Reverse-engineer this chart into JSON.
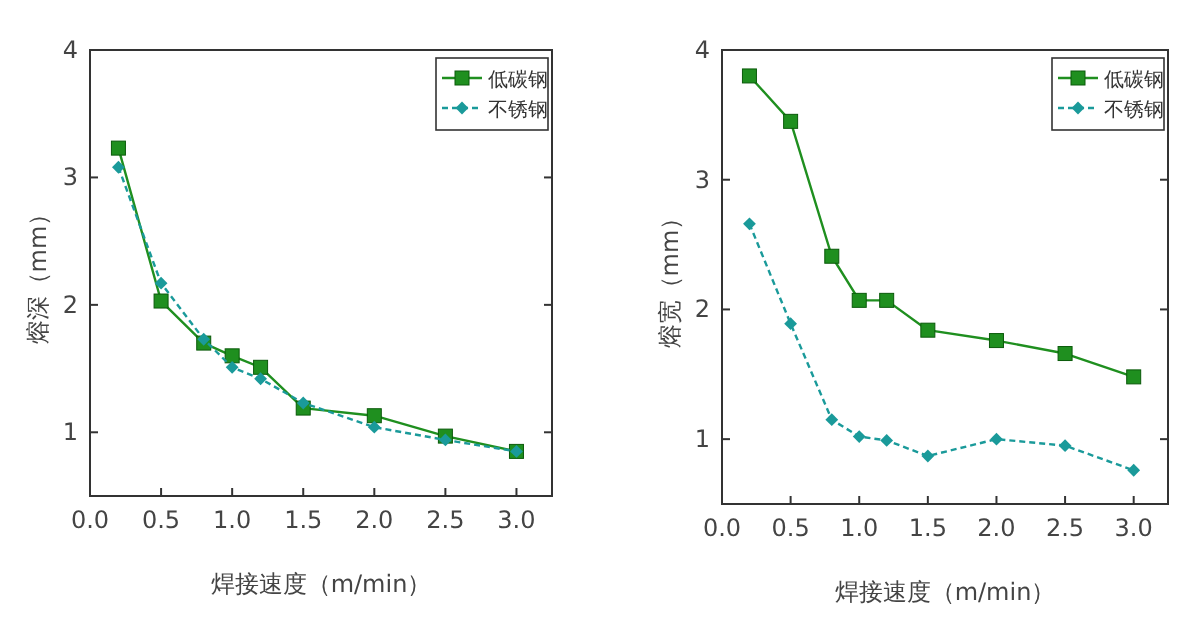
{
  "chart_data": [
    {
      "type": "line",
      "xlabel": "焊接速度（m/min）",
      "ylabel": "熔深（mm）",
      "x": [
        0.2,
        0.5,
        0.8,
        1.0,
        1.2,
        1.5,
        2.0,
        2.5,
        3.0
      ],
      "xlim": [
        0,
        3.25
      ],
      "xticks": [
        {
          "value": 0,
          "label": "0.0"
        },
        {
          "value": 0.5,
          "label": "0.5"
        },
        {
          "value": 1,
          "label": "1.0"
        },
        {
          "value": 1.5,
          "label": "1.5"
        },
        {
          "value": 2,
          "label": "2.0"
        },
        {
          "value": 2.5,
          "label": "2.5"
        },
        {
          "value": 3,
          "label": "3.0"
        }
      ],
      "ylim": [
        0.5,
        4
      ],
      "yticks": [
        1,
        2,
        3,
        4
      ],
      "legend": "top right",
      "grid": false,
      "series": [
        {
          "name": "低碳钢",
          "color": "#1f8f1f",
          "marker": "square",
          "line_style": "solid",
          "values": [
            3.23,
            2.03,
            1.7,
            1.6,
            1.51,
            1.19,
            1.13,
            0.97,
            0.85
          ]
        },
        {
          "name": "不锈钢",
          "color": "#1a9a9a",
          "marker": "diamond",
          "line_style": "dashed",
          "values": [
            3.08,
            2.17,
            1.73,
            1.51,
            1.42,
            1.23,
            1.04,
            0.94,
            0.85
          ]
        }
      ]
    },
    {
      "type": "line",
      "xlabel": "焊接速度（m/min）",
      "ylabel": "熔宽（mm）",
      "x": [
        0.2,
        0.5,
        0.8,
        1.0,
        1.2,
        1.5,
        2.0,
        2.5,
        3.0
      ],
      "xlim": [
        0,
        3.25
      ],
      "xticks": [
        {
          "value": 0,
          "label": "0.0"
        },
        {
          "value": 0.5,
          "label": "0.5"
        },
        {
          "value": 1,
          "label": "1.0"
        },
        {
          "value": 1.5,
          "label": "1.5"
        },
        {
          "value": 2,
          "label": "2.0"
        },
        {
          "value": 2.5,
          "label": "2.5"
        },
        {
          "value": 3,
          "label": "3.0"
        }
      ],
      "ylim": [
        0.5,
        4
      ],
      "yticks": [
        1,
        2,
        3,
        4
      ],
      "legend": "top right",
      "grid": false,
      "series": [
        {
          "name": "低碳钢",
          "color": "#1f8f1f",
          "marker": "square",
          "line_style": "solid",
          "values": [
            3.8,
            3.45,
            2.41,
            2.07,
            2.07,
            1.84,
            1.76,
            1.66,
            1.48
          ]
        },
        {
          "name": "不锈钢",
          "color": "#1a9a9a",
          "marker": "diamond",
          "line_style": "dashed",
          "values": [
            2.66,
            1.89,
            1.15,
            1.02,
            0.99,
            0.87,
            1.0,
            0.95,
            0.76
          ]
        }
      ]
    }
  ]
}
